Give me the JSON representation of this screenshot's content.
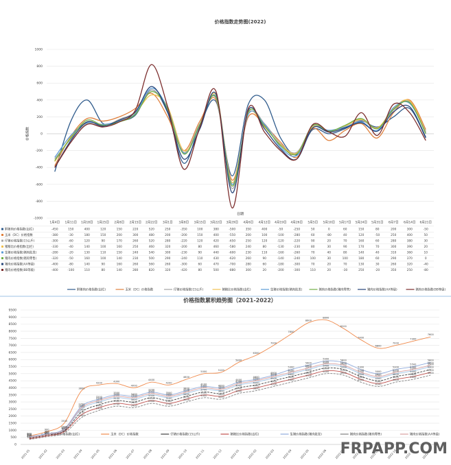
{
  "chart_data": [
    {
      "type": "line",
      "title": "价格指数走势图(2022)",
      "x_label": "日期",
      "y_label": "价格指数",
      "categories": [
        "1月4日",
        "1月11日",
        "1月18日",
        "1月25日",
        "2月8日",
        "2月15日",
        "2月22日",
        "3月1日",
        "3月8日",
        "3月15日",
        "3月22日",
        "3月29日",
        "4月6日",
        "4月12日",
        "4月19日",
        "4月26日",
        "5月5日",
        "5月10日",
        "5月17日",
        "5月24日",
        "5月31日",
        "6月7日",
        "6月14日",
        "6月21日"
      ],
      "ylim": [
        -1000,
        1000
      ],
      "yticks": [
        -1000,
        -800,
        -600,
        -400,
        -200,
        0,
        200,
        400,
        600,
        800,
        1000
      ],
      "grid": true,
      "legend": "bottom",
      "series": [
        {
          "name": "鲜猪肉价格指数(出栏)",
          "color": "#2f5b8c",
          "values": [
            -450,
            150,
            400,
            120,
            150,
            220,
            520,
            250,
            -350,
            100,
            380,
            -500,
            350,
            400,
            -50,
            -250,
            50,
            0,
            60,
            150,
            80,
            200,
            300,
            -50
          ]
        },
        {
          "name": "玉米（DC）价格指数",
          "color": "#e0803c",
          "values": [
            -380,
            -30,
            180,
            150,
            200,
            300,
            480,
            200,
            -200,
            150,
            400,
            -550,
            200,
            100,
            -100,
            -280,
            60,
            -80,
            40,
            120,
            -50,
            250,
            400,
            50
          ]
        },
        {
          "name": "仔猪价格指数(15公斤)",
          "color": "#a5a5a5",
          "values": [
            -300,
            -60,
            120,
            90,
            170,
            260,
            520,
            280,
            -220,
            120,
            420,
            -650,
            250,
            120,
            -120,
            -220,
            90,
            20,
            70,
            160,
            60,
            280,
            380,
            30
          ]
        },
        {
          "name": "猪粮比价格指数(出栏)",
          "color": "#f0c050",
          "values": [
            -330,
            -40,
            140,
            100,
            160,
            250,
            460,
            320,
            -200,
            80,
            460,
            -580,
            240,
            80,
            -130,
            -230,
            80,
            30,
            90,
            170,
            70,
            300,
            390,
            20
          ]
        },
        {
          "name": "生猪价格指数(猪肉批发)",
          "color": "#5b9bd5",
          "values": [
            -280,
            -20,
            130,
            110,
            150,
            240,
            540,
            300,
            -230,
            90,
            440,
            -600,
            230,
            110,
            -160,
            -260,
            70,
            40,
            80,
            140,
            40,
            310,
            360,
            10
          ]
        },
        {
          "name": "猪肉价格指数(猪肉零售)",
          "color": "#70ad47",
          "values": [
            -320,
            -50,
            160,
            100,
            140,
            230,
            500,
            290,
            -240,
            110,
            430,
            -620,
            260,
            90,
            -140,
            -240,
            100,
            30,
            100,
            180,
            60,
            290,
            370,
            0
          ]
        },
        {
          "name": "猪肉价格指数(AA等级)",
          "color": "#264478",
          "values": [
            -400,
            -80,
            140,
            90,
            160,
            260,
            560,
            260,
            -300,
            60,
            470,
            -700,
            280,
            60,
            -180,
            -300,
            70,
            20,
            70,
            130,
            30,
            260,
            320,
            -40
          ]
        },
        {
          "name": "猪肉价格指数(BB等级)",
          "color": "#7b2c2c",
          "values": [
            -400,
            -100,
            110,
            80,
            140,
            280,
            820,
            320,
            -420,
            80,
            500,
            -880,
            300,
            20,
            -200,
            -300,
            110,
            20,
            -30,
            250,
            -20,
            350,
            250,
            -80
          ]
        }
      ]
    },
    {
      "type": "line",
      "title": "价格指数累积趋势图（2021-2022）",
      "categories": [
        "2021-01",
        "2021-02",
        "2021-03",
        "2021-04",
        "2021-05",
        "2021-06",
        "2021-07",
        "2021-08",
        "2021-09",
        "2021-10",
        "2021-11",
        "2021-12",
        "2022-01",
        "2022-02",
        "2022-03",
        "2022-04",
        "2022-05",
        "2022-06",
        "2022-07",
        "2022-08",
        "2022-09",
        "2022-10",
        "2022-11",
        "2022-12"
      ],
      "ylim": [
        0,
        9500
      ],
      "yticks": [
        0,
        500,
        1000,
        1500,
        2000,
        2500,
        3000,
        3500,
        4000,
        4500,
        5000,
        5500,
        6000,
        6500,
        7000,
        7500,
        8000,
        8500,
        9000,
        9500
      ],
      "grid": true,
      "legend": "bottom",
      "watermark": "FRPAPP.COM",
      "series": [
        {
          "name": "鲜猪肉价格指数(出栏)",
          "color": "#9dc3e6",
          "values": [
            500,
            700,
            1000,
            2500,
            3000,
            3300,
            3200,
            3500,
            3300,
            3600,
            3900,
            3800,
            4200,
            4400,
            4700,
            5000,
            5300,
            5600,
            5500,
            5000,
            4700,
            5000,
            5200,
            5500
          ]
        },
        {
          "name": "玉米（DC）价格指数",
          "color": "#f08a4b",
          "values": [
            600,
            900,
            1500,
            3800,
            4200,
            4300,
            4000,
            4400,
            4200,
            4600,
            5000,
            5100,
            5800,
            6300,
            7000,
            7800,
            8600,
            8800,
            8200,
            7400,
            6800,
            7000,
            7300,
            7600
          ]
        },
        {
          "name": "仔猪价格指数(15公斤)",
          "color": "#404040",
          "values": [
            450,
            650,
            950,
            2300,
            2800,
            3100,
            3000,
            3300,
            3100,
            3400,
            3700,
            3600,
            4000,
            4200,
            4500,
            4800,
            5100,
            5400,
            5300,
            4800,
            4500,
            4800,
            5000,
            5300
          ]
        },
        {
          "name": "猪粮比价格指数(出栏)",
          "color": "#c0504d",
          "values": [
            400,
            600,
            900,
            2100,
            2600,
            2900,
            2800,
            3100,
            2900,
            3200,
            3500,
            3400,
            3800,
            4000,
            4300,
            4600,
            4900,
            5200,
            5100,
            4600,
            4300,
            4600,
            4800,
            5100
          ]
        },
        {
          "name": "生猪价格指数(猪肉批发)",
          "color": "#8faadc",
          "values": [
            550,
            750,
            1100,
            2700,
            3200,
            3500,
            3400,
            3700,
            3500,
            3800,
            4100,
            4000,
            4400,
            4600,
            4900,
            5300,
            5600,
            5900,
            5800,
            5300,
            5000,
            5300,
            5500,
            5800
          ]
        },
        {
          "name": "猪肉价格指数(猪肉零售)",
          "color": "#7f7f7f",
          "values": [
            350,
            550,
            800,
            1900,
            2400,
            2700,
            2600,
            2900,
            2700,
            3000,
            3300,
            3200,
            3600,
            3800,
            4100,
            4400,
            4700,
            5000,
            4900,
            4400,
            4100,
            4400,
            4600,
            4900
          ]
        },
        {
          "name": "猪肉价格指数(AA等级)",
          "color": "#d9a0a0",
          "values": [
            500,
            700,
            1050,
            2600,
            3100,
            3400,
            3300,
            3600,
            3400,
            3700,
            4000,
            3900,
            4300,
            4500,
            4800,
            5100,
            5400,
            5700,
            5600,
            5100,
            4800,
            5100,
            5300,
            5600
          ]
        }
      ]
    }
  ]
}
